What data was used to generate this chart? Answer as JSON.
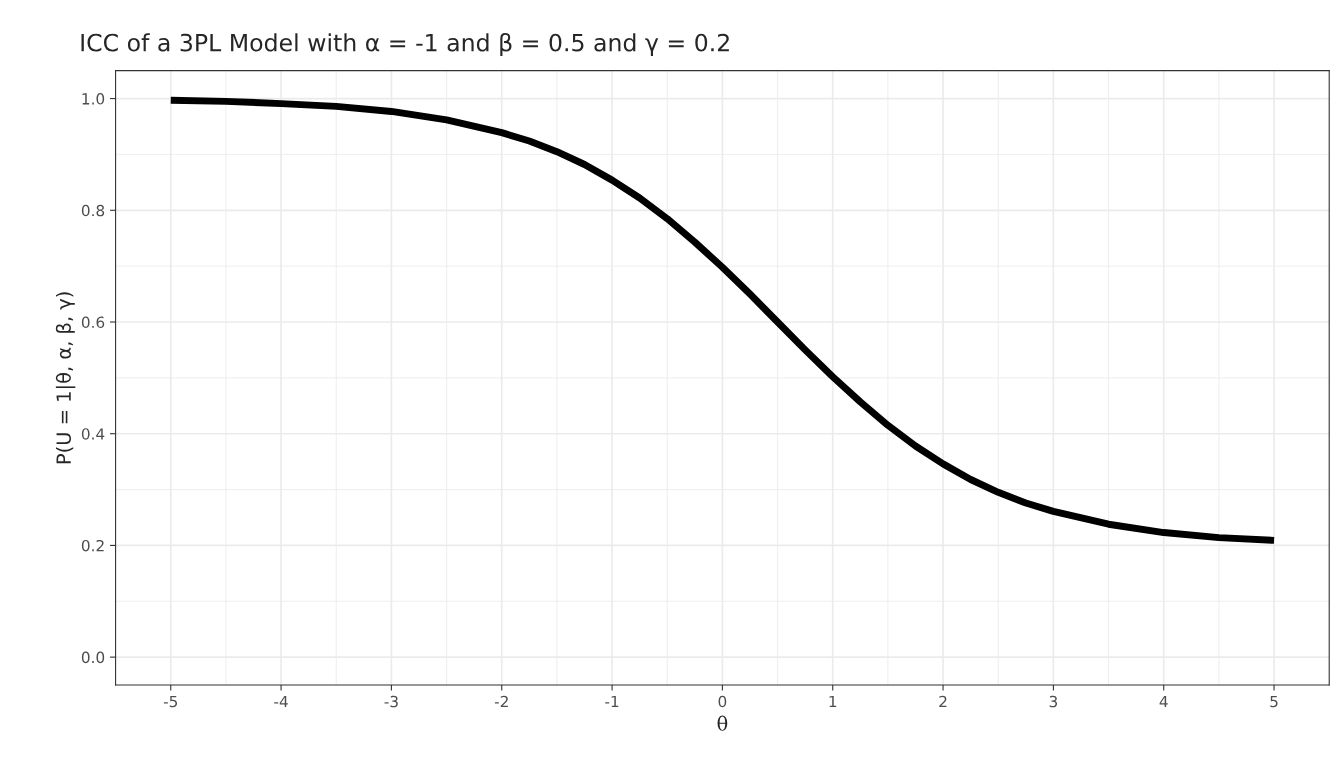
{
  "chart_data": {
    "type": "line",
    "title": "ICC of a 3PL Model with α = -1 and β = 0.5 and γ = 0.2",
    "xlabel": "θ",
    "ylabel": "P(U = 1|θ, α, β, γ)",
    "x": [
      -5,
      -4.5,
      -4,
      -3.5,
      -3,
      -2.5,
      -2,
      -1.75,
      -1.5,
      -1.25,
      -1,
      -0.75,
      -0.5,
      -0.25,
      0,
      0.25,
      0.5,
      0.75,
      1,
      1.25,
      1.5,
      1.75,
      2,
      2.25,
      2.5,
      2.75,
      3,
      3.5,
      4,
      4.5,
      5
    ],
    "series": [
      {
        "color": "#000000",
        "values": [
          0.997,
          0.995,
          0.991,
          0.986,
          0.977,
          0.962,
          0.939,
          0.924,
          0.905,
          0.882,
          0.854,
          0.822,
          0.785,
          0.743,
          0.698,
          0.65,
          0.6,
          0.55,
          0.502,
          0.457,
          0.415,
          0.378,
          0.346,
          0.318,
          0.295,
          0.276,
          0.261,
          0.238,
          0.223,
          0.214,
          0.209
        ]
      }
    ],
    "xlim": [
      -5.5,
      5.5
    ],
    "ylim": [
      -0.05,
      1.05
    ],
    "xticks": [
      -5,
      -4,
      -3,
      -2,
      -1,
      0,
      1,
      2,
      3,
      4,
      5
    ],
    "yticks": [
      {
        "value": 0,
        "label": "0.0"
      },
      {
        "value": 0.2,
        "label": "0.2"
      },
      {
        "value": 0.4,
        "label": "0.4"
      },
      {
        "value": 0.6,
        "label": "0.6"
      },
      {
        "value": 0.8,
        "label": "0.8"
      },
      {
        "value": 1,
        "label": "1.0"
      }
    ],
    "grid": true,
    "marker": "none",
    "line_style": "solid"
  }
}
